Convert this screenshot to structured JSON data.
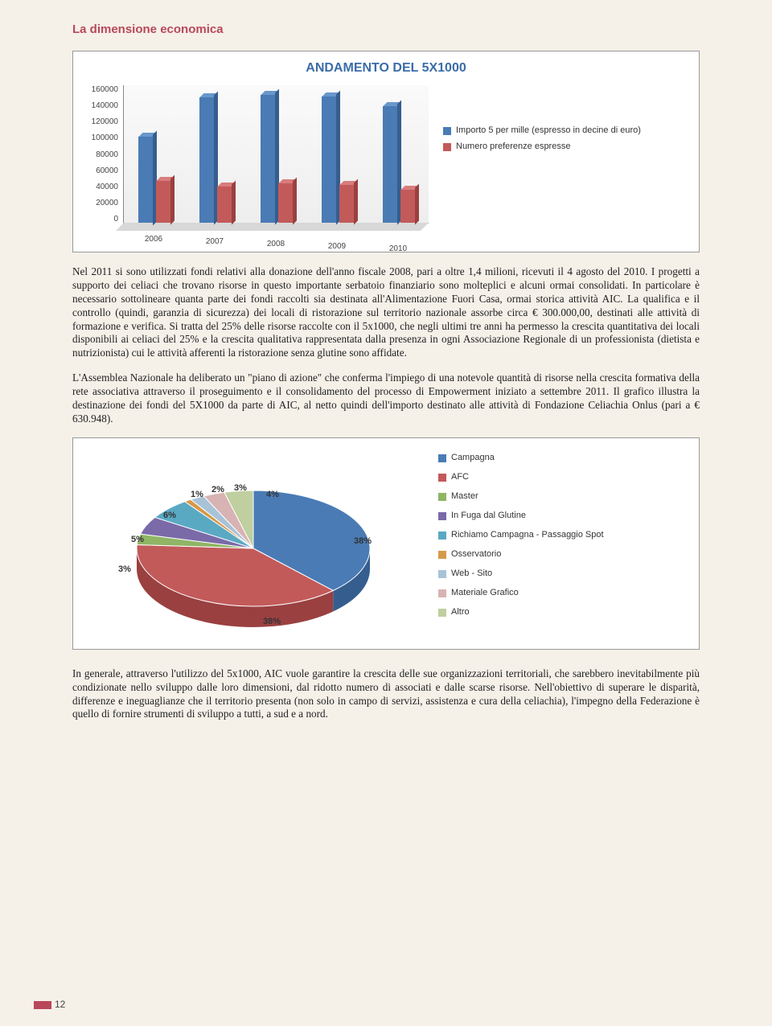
{
  "section_title": "La dimensione economica",
  "page_number": "12",
  "bar_chart": {
    "type": "bar",
    "title": "ANDAMENTO DEL 5X1000",
    "y_ticks": [
      160000,
      140000,
      120000,
      100000,
      80000,
      60000,
      40000,
      20000,
      0
    ],
    "y_max": 160000,
    "categories": [
      "2006",
      "2007",
      "2008",
      "2009",
      "2010"
    ],
    "series": [
      {
        "name": "Importo 5 per mille (espresso in decine di euro)",
        "values": [
          100000,
          145000,
          148000,
          146000,
          135000
        ],
        "color": "#4a7bb5",
        "top": "#6a97cc",
        "side": "#355e8f"
      },
      {
        "name": "Numero preferenze espresse",
        "values": [
          48000,
          42000,
          46000,
          44000,
          38000
        ],
        "color": "#c35a5a",
        "top": "#d87c7c",
        "side": "#9a4040"
      }
    ],
    "background": "#ffffff",
    "axis_fontsize": 10,
    "title_fontsize": 16
  },
  "paragraph1": "Nel 2011 si sono utilizzati fondi relativi alla donazione dell'anno fiscale 2008, pari a oltre 1,4 milioni, ricevuti il 4 agosto del 2010. I progetti a supporto dei celiaci che trovano risorse in questo importante serbatoio finanziario sono molteplici e alcuni ormai consolidati. In particolare è necessario sottolineare quanta parte dei fondi raccolti sia destinata all'Alimentazione Fuori Casa, ormai storica attività AIC. La qualifica e il controllo (quindi, garanzia di sicurezza) dei locali di ristorazione sul territorio nazionale assorbe circa € 300.000,00, destinati alle attività di formazione e verifica. Si tratta del 25% delle risorse raccolte con il 5x1000, che negli ultimi tre anni ha permesso la crescita quantitativa dei locali disponibili ai celiaci del 25% e la crescita qualitativa rappresentata dalla presenza in ogni Associazione Regionale di un professionista (dietista e nutrizionista) cui le attività afferenti la ristorazione senza glutine sono affidate.",
  "paragraph1b": "L'Assemblea Nazionale ha deliberato un \"piano di azione\" che conferma l'impiego di una notevole quantità di risorse nella crescita formativa della rete associativa attraverso il proseguimento e il consolidamento del processo di Empowerment iniziato a settembre 2011. Il grafico illustra la destinazione dei fondi del 5X1000 da parte di AIC, al netto quindi dell'importo destinato alle attività di Fondazione Celiachia Onlus (pari a € 630.948).",
  "pie_chart": {
    "type": "pie",
    "slices": [
      {
        "label": "Campagna",
        "pct": 38,
        "color": "#4a7bb5",
        "side": "#355e8f"
      },
      {
        "label": "AFC",
        "pct": 38,
        "color": "#c35a5a",
        "side": "#9a4040"
      },
      {
        "label": "Master",
        "pct": 3,
        "color": "#8fb565",
        "side": "#6e8f4a"
      },
      {
        "label": "In Fuga dal Glutine",
        "pct": 5,
        "color": "#7a6aa8",
        "side": "#5d4f85"
      },
      {
        "label": "Richiamo Campagna - Passaggio Spot",
        "pct": 6,
        "color": "#5aa9c3",
        "side": "#3f8099"
      },
      {
        "label": "Osservatorio",
        "pct": 1,
        "color": "#d6994a",
        "side": "#aa7530"
      },
      {
        "label": "Web - Sito",
        "pct": 2,
        "color": "#a8c3d8",
        "side": "#7f9bb2"
      },
      {
        "label": "Materiale Grafico",
        "pct": 3,
        "color": "#d8b3b3",
        "side": "#b28989"
      },
      {
        "label": "Altro",
        "pct": 4,
        "color": "#bfcf9f",
        "side": "#97a87a"
      }
    ],
    "label_fontsize": 11,
    "callout_labels": [
      "38%",
      "38%",
      "3%",
      "5%",
      "6%",
      "1%",
      "2%",
      "3%",
      "4%"
    ]
  },
  "paragraph2": "In generale, attraverso l'utilizzo del 5x1000, AIC vuole garantire la crescita delle sue organizzazioni territoriali, che sarebbero inevitabilmente più condizionate nello sviluppo dalle loro dimensioni, dal ridotto numero di associati e dalle scarse risorse. Nell'obiettivo di superare le disparità, differenze e ineguaglianze che il territorio presenta (non solo in campo di servizi, assistenza e cura della celiachia), l'impegno della Federazione è quello di fornire strumenti di sviluppo a tutti, a sud e a nord."
}
